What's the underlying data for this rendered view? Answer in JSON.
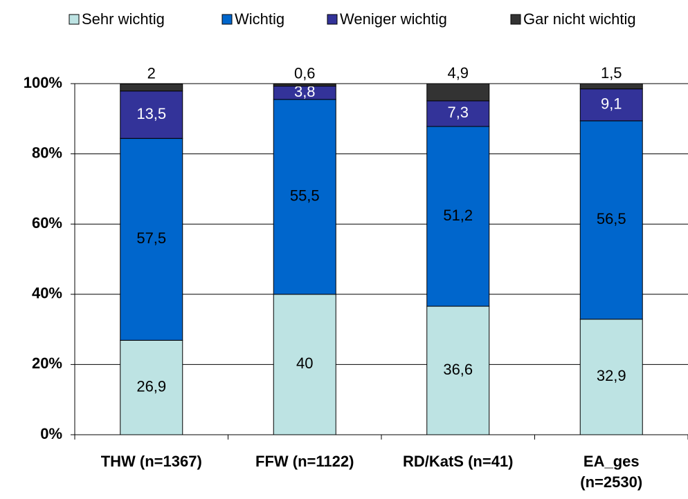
{
  "chart_data": {
    "type": "stacked_bar",
    "categories": [
      "THW (n=1367)",
      "FFW (n=1122)",
      "RD/KatS (n=41)",
      "EA_ges\n(n=2530)"
    ],
    "series": [
      {
        "name": "Sehr wichtig",
        "color": "#bde3e3",
        "values": [
          26.9,
          40,
          36.6,
          32.9
        ],
        "value_labels": [
          "26,9",
          "40",
          "36,6",
          "32,9"
        ]
      },
      {
        "name": "Wichtig",
        "color": "#0066cc",
        "values": [
          57.5,
          55.5,
          51.2,
          56.5
        ],
        "value_labels": [
          "57,5",
          "55,5",
          "51,2",
          "56,5"
        ]
      },
      {
        "name": "Weniger wichtig",
        "color": "#333399",
        "values": [
          13.5,
          3.8,
          7.3,
          9.1
        ],
        "value_labels": [
          "13,5",
          "3,8",
          "7,3",
          "9,1"
        ]
      },
      {
        "name": "Gar nicht wichtig",
        "color": "#333333",
        "values": [
          2,
          0.6,
          4.9,
          1.5
        ],
        "value_labels": [
          "2",
          "0,6",
          "4,9",
          "1,5"
        ]
      }
    ],
    "ylim": [
      0,
      100
    ],
    "yticks": [
      {
        "value": 0,
        "label": "0%"
      },
      {
        "value": 20,
        "label": "20%"
      },
      {
        "value": 40,
        "label": "40%"
      },
      {
        "value": 60,
        "label": "60%"
      },
      {
        "value": 80,
        "label": "80%"
      },
      {
        "value": 100,
        "label": "100%"
      }
    ],
    "grid": true,
    "legend": "top"
  }
}
